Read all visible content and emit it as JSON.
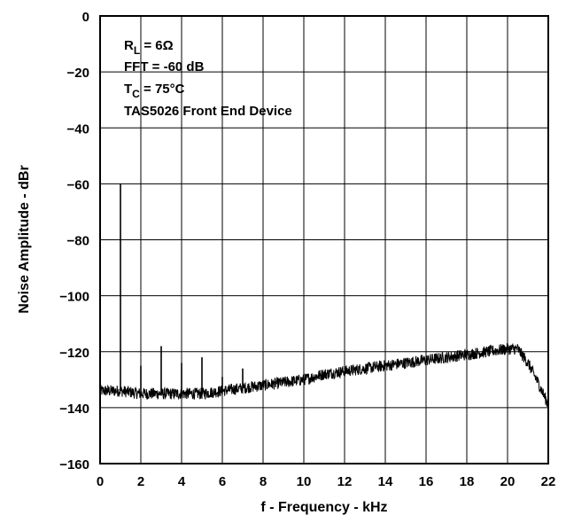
{
  "chart_data": {
    "type": "line",
    "title": "",
    "xlabel": "f - Frequency - kHz",
    "ylabel": "Noise Amplitude - dBr",
    "xlim": [
      0,
      22
    ],
    "ylim": [
      -160,
      0
    ],
    "x_ticks": [
      0,
      2,
      4,
      6,
      8,
      10,
      12,
      14,
      16,
      18,
      20,
      22
    ],
    "y_ticks": [
      0,
      -20,
      -40,
      -60,
      -80,
      -100,
      -120,
      -140,
      -160
    ],
    "x_tick_labels": [
      "0",
      "2",
      "4",
      "6",
      "8",
      "10",
      "12",
      "14",
      "16",
      "18",
      "20",
      "22"
    ],
    "y_tick_labels": [
      "0",
      "−20",
      "−40",
      "−60",
      "−80",
      "−100",
      "−120",
      "−140",
      "−160"
    ],
    "grid": true,
    "annotations": {
      "rl_main": "R",
      "rl_sub": "L",
      "rl_rest": " = 6Ω",
      "fft": "FFT = -60 dB",
      "tc_main": "T",
      "tc_sub": "C",
      "tc_rest": " = 75°C",
      "device": "TAS5026 Front End Device"
    },
    "series": [
      {
        "x": [
          0,
          0.5,
          1,
          2,
          3,
          4,
          5,
          6,
          7,
          8,
          9,
          10,
          11,
          12,
          13,
          14,
          15,
          16,
          17,
          18,
          19,
          20,
          20.5,
          21,
          21.5,
          22
        ],
        "y": [
          -134,
          -134,
          -134,
          -135,
          -135,
          -135,
          -135,
          -134,
          -133,
          -132,
          -131,
          -130,
          -128,
          -127,
          -126,
          -125,
          -124,
          -123,
          -122,
          -121,
          -120,
          -119,
          -119,
          -124,
          -131,
          -139
        ]
      }
    ],
    "spikes": [
      {
        "x": 1,
        "y": -60
      },
      {
        "x": 2,
        "y": -125
      },
      {
        "x": 3,
        "y": -118
      },
      {
        "x": 4,
        "y": -124
      },
      {
        "x": 5,
        "y": -122
      },
      {
        "x": 6,
        "y": -129
      },
      {
        "x": 7,
        "y": -126
      }
    ]
  }
}
